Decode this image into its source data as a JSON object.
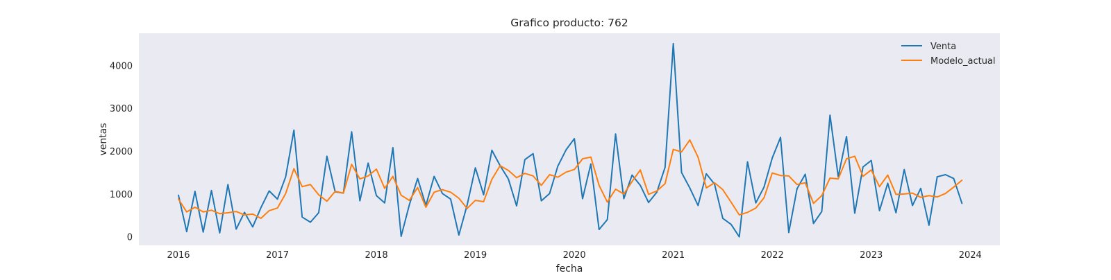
{
  "chart_data": {
    "type": "line",
    "title": "Grafico producto: 762",
    "xlabel": "fecha",
    "ylabel": "ventas",
    "xlim": [
      2015.6,
      2024.3
    ],
    "ylim": [
      -200,
      4750
    ],
    "x_ticks": [
      2016,
      2017,
      2018,
      2019,
      2020,
      2021,
      2022,
      2023,
      2024
    ],
    "y_ticks": [
      0,
      1000,
      2000,
      3000,
      4000
    ],
    "grid": false,
    "legend": "top-right",
    "x_start": 2016,
    "x_step_months": 1,
    "series": [
      {
        "name": "Venta",
        "color": "#1f77b4",
        "values": [
          970,
          120,
          1060,
          110,
          1080,
          90,
          1220,
          180,
          570,
          230,
          680,
          1070,
          880,
          1400,
          2490,
          460,
          340,
          560,
          1880,
          1050,
          1020,
          2450,
          840,
          1720,
          960,
          790,
          2080,
          10,
          750,
          1360,
          730,
          1410,
          1010,
          880,
          40,
          740,
          1610,
          980,
          2020,
          1660,
          1350,
          720,
          1800,
          1940,
          840,
          1010,
          1650,
          2030,
          2290,
          890,
          1700,
          170,
          400,
          2400,
          890,
          1440,
          1200,
          800,
          1040,
          1620,
          4510,
          1500,
          1140,
          730,
          1470,
          1230,
          430,
          290,
          0,
          1750,
          790,
          1160,
          1840,
          2320,
          100,
          1120,
          1460,
          310,
          590,
          2840,
          1400,
          2340,
          550,
          1630,
          1780,
          610,
          1250,
          560,
          1570,
          730,
          1130,
          270,
          1400,
          1450,
          1360,
          780
        ]
      },
      {
        "name": "Modelo_actual",
        "color": "#ff7f0e",
        "values": [
          880,
          580,
          690,
          580,
          620,
          540,
          560,
          590,
          510,
          530,
          430,
          610,
          670,
          1010,
          1590,
          1170,
          1220,
          980,
          830,
          1060,
          1020,
          1690,
          1350,
          1420,
          1580,
          1130,
          1410,
          970,
          850,
          1150,
          690,
          1040,
          1100,
          1040,
          900,
          660,
          850,
          820,
          1340,
          1660,
          1550,
          1380,
          1480,
          1420,
          1200,
          1450,
          1390,
          1510,
          1570,
          1820,
          1860,
          1200,
          810,
          1110,
          1000,
          1290,
          1560,
          990,
          1070,
          1240,
          2040,
          1980,
          2260,
          1860,
          1140,
          1260,
          1100,
          810,
          510,
          570,
          670,
          910,
          1490,
          1430,
          1420,
          1220,
          1260,
          780,
          960,
          1370,
          1350,
          1820,
          1880,
          1410,
          1560,
          1170,
          1440,
          990,
          1000,
          1020,
          920,
          960,
          930,
          1010,
          1160,
          1320
        ]
      }
    ]
  }
}
